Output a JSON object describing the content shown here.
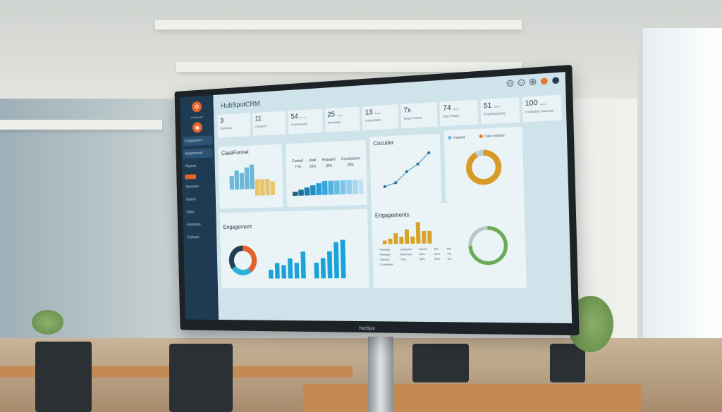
{
  "app": {
    "title": "HubSpotCRM",
    "monitor_brand": "HubSpot"
  },
  "colors": {
    "sidebar": "#1f3b52",
    "accent": "#e5622a",
    "blue": "#1aa3d9",
    "gold": "#d9a328",
    "green": "#6aaa55"
  },
  "sidebar": {
    "org": "Dashboard",
    "items": [
      {
        "label": "Engagement",
        "active": true
      },
      {
        "label": "Assignments",
        "active": true
      },
      {
        "label": "Reports"
      },
      {
        "label": "Overview"
      },
      {
        "label": "Search"
      },
      {
        "label": "Deals"
      },
      {
        "label": "Enterprise"
      },
      {
        "label": "Contacts"
      }
    ]
  },
  "header_icons": [
    "clock-icon",
    "inbox-icon",
    "calendar-icon",
    "avatar",
    "avatar"
  ],
  "kpis": [
    {
      "value": "3",
      "label": "Overview"
    },
    {
      "value": "11",
      "label": "Contacts"
    },
    {
      "value": "54 ...",
      "label": "Conversions"
    },
    {
      "value": "25 ...",
      "label": "Overview"
    },
    {
      "value": "13 ...",
      "label": "Conversion"
    },
    {
      "value": "7x",
      "label": "Deep Funnel"
    },
    {
      "value": "74 ...",
      "label": "Day Phase"
    },
    {
      "value": "51 ...",
      "label": "Feed/reporting"
    },
    {
      "value": "100 ...",
      "label": "Company Success"
    }
  ],
  "panels": {
    "funnel": {
      "title": "CaseFunnel",
      "blue": [
        5,
        7,
        6,
        8,
        9
      ],
      "gold": [
        6,
        6,
        6,
        5
      ]
    },
    "rates": {
      "labels": [
        "Contact",
        "Avail",
        "Engaged",
        "Conclusions"
      ],
      "values": [
        "77%",
        "29%",
        "18%",
        "29%"
      ],
      "bars": [
        2,
        3,
        4,
        5,
        6,
        7,
        7,
        7,
        7,
        7,
        7,
        7
      ]
    },
    "line": {
      "title": "Cocuiler",
      "points": [
        1,
        2,
        5,
        7,
        10
      ]
    },
    "donut": {
      "legend": [
        "Tracked",
        "Case Surface"
      ],
      "share": [
        0.92,
        0.08
      ]
    },
    "engagement": {
      "title": "Engagement",
      "donut": [
        0.4,
        0.25,
        0.35
      ],
      "bars1": [
        4,
        7,
        6,
        9,
        7,
        12
      ],
      "bars2": [
        7,
        9,
        12,
        16,
        17
      ]
    },
    "engagements": {
      "title": "Engagements",
      "bars": [
        2,
        3,
        6,
        4,
        8,
        4,
        12,
        7,
        7
      ],
      "rows": [
        [
          "Package",
          "Conquest",
          "Saved",
          "8%",
          "5%"
        ],
        [
          "Package",
          "Searched",
          "35%",
          "26%",
          "7%"
        ],
        [
          "Tracked",
          "Time",
          "36%",
          "29%",
          "9%"
        ],
        [
          "Completed",
          "",
          "",
          "",
          ""
        ]
      ],
      "donut": [
        0.75,
        0.25
      ]
    }
  }
}
